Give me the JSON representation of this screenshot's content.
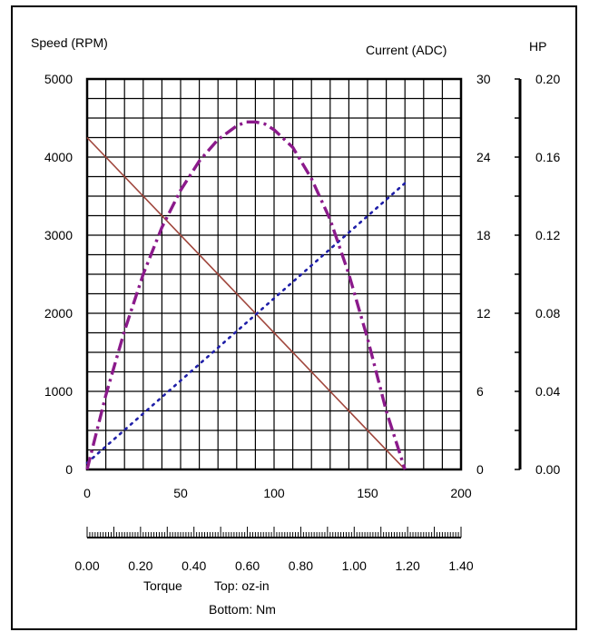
{
  "chart_data": {
    "type": "line",
    "title": "",
    "axes": {
      "left": {
        "label": "Speed (RPM)",
        "range": [
          0,
          5000
        ],
        "ticks": [
          "0",
          "1000",
          "2000",
          "3000",
          "4000",
          "5000"
        ]
      },
      "right_current": {
        "label": "Current (ADC)",
        "range": [
          0,
          30
        ],
        "ticks": [
          "0",
          "6",
          "12",
          "18",
          "24",
          "30"
        ]
      },
      "right_hp": {
        "label": "HP",
        "range": [
          0,
          0.2
        ],
        "ticks": [
          "0.00",
          "0.04",
          "0.08",
          "0.12",
          "0.16",
          "0.20"
        ]
      },
      "bottom_top": {
        "range": [
          0,
          200
        ],
        "ticks": [
          "0",
          "50",
          "100",
          "150",
          "200"
        ]
      },
      "bottom_bottom": {
        "range": [
          0,
          1.4
        ],
        "ticks": [
          "0.00",
          "0.20",
          "0.40",
          "0.60",
          "0.80",
          "1.00",
          "1.20",
          "1.40"
        ]
      }
    },
    "xlabel": "Torque",
    "xlabel_top": "Top: oz-in",
    "xlabel_bottom": "Bottom: Nm",
    "grid": true,
    "series": [
      {
        "axis": "speed",
        "color": "#a0463c",
        "style": "solid",
        "x": [
          0,
          170
        ],
        "y": [
          4250,
          0
        ]
      },
      {
        "axis": "current",
        "color": "#1f1fa8",
        "style": "dotted",
        "x": [
          0,
          170
        ],
        "y": [
          0.5,
          22
        ]
      },
      {
        "axis": "hp",
        "color": "#8b1a8b",
        "style": "dashdot",
        "x": [
          0,
          10,
          20,
          30,
          40,
          50,
          60,
          70,
          80,
          85,
          90,
          95,
          100,
          110,
          120,
          130,
          140,
          150,
          160,
          170
        ],
        "y": [
          0,
          0.038,
          0.071,
          0.1,
          0.124,
          0.143,
          0.158,
          0.169,
          0.176,
          0.178,
          0.178,
          0.177,
          0.174,
          0.165,
          0.149,
          0.128,
          0.1,
          0.067,
          0.03,
          0
        ]
      }
    ]
  },
  "colors": {
    "axis": "#000000",
    "grid": "#000000",
    "speed_line": "#a0463c",
    "current_line": "#1f1fa8",
    "hp_line": "#8b1a8b"
  }
}
